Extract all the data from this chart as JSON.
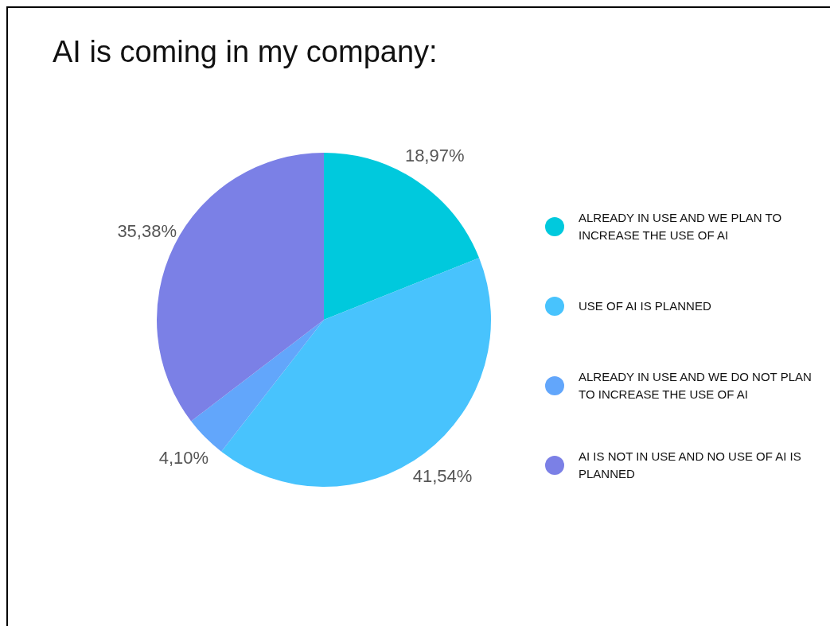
{
  "chart_data": {
    "type": "pie",
    "title": "AI is coming in my company:",
    "categories": [
      "ALREADY IN USE AND WE PLAN TO INCREASE THE USE OF AI",
      "USE OF AI IS PLANNED",
      "ALREADY IN USE AND WE DO NOT PLAN TO INCREASE THE USE OF AI",
      "AI IS NOT IN USE AND NO USE OF AI IS PLANNED"
    ],
    "values": [
      18.97,
      41.54,
      4.1,
      35.38
    ],
    "value_labels": [
      "18,97%",
      "41,54%",
      "4,10%",
      "35,38%"
    ],
    "colors": [
      "#00c9dd",
      "#48c3fd",
      "#62a6fb",
      "#7b80e6"
    ],
    "legend": "right"
  }
}
